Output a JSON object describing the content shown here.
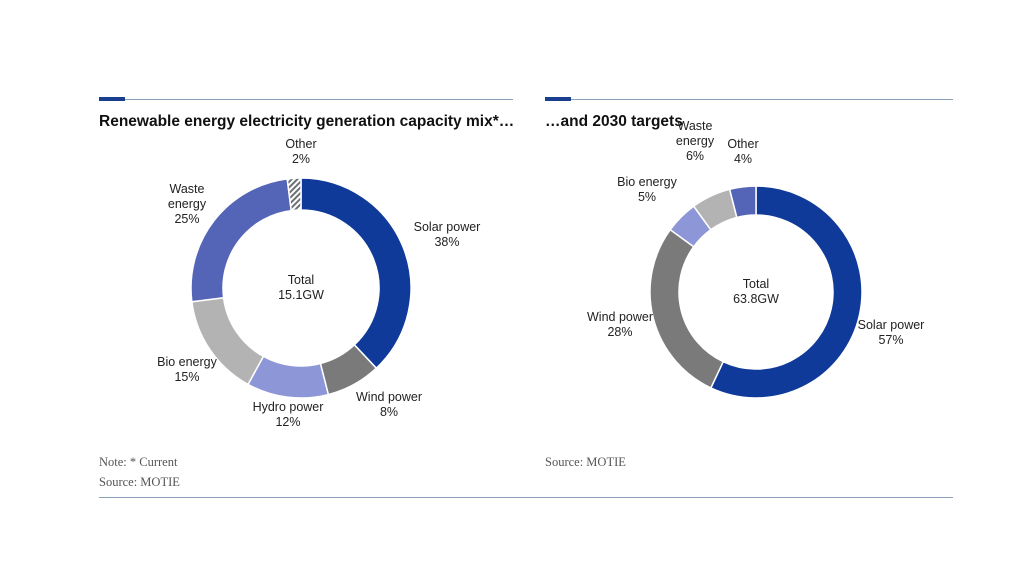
{
  "footer": {
    "left_note": "Note: * Current",
    "left_source": "Source: MOTIE",
    "right_source": "Source: MOTIE"
  },
  "colors": {
    "accent": "#1b3f8f",
    "rule": "#8aa1bc"
  },
  "chart_data": [
    {
      "type": "pie",
      "variant": "donut",
      "title": "Renewable energy electricity generation capacity mix*…",
      "center_label": [
        "Total",
        "15.1GW"
      ],
      "slices": [
        {
          "label": [
            "Solar power"
          ],
          "pct_text": "38%",
          "value": 38,
          "color": "#0f3a99"
        },
        {
          "label": [
            "Wind power"
          ],
          "pct_text": "8%",
          "value": 8,
          "color": "#7a7a7a"
        },
        {
          "label": [
            "Hydro power"
          ],
          "pct_text": "12%",
          "value": 12,
          "color": "#8d96d6"
        },
        {
          "label": [
            "Bio energy"
          ],
          "pct_text": "15%",
          "value": 15,
          "color": "#b3b3b3"
        },
        {
          "label": [
            "Waste",
            "energy"
          ],
          "pct_text": "25%",
          "value": 25,
          "color": "#5465b7"
        },
        {
          "label": [
            "Other"
          ],
          "pct_text": "2%",
          "value": 2,
          "color": "#9aa0a6",
          "pattern": "hatch"
        }
      ]
    },
    {
      "type": "pie",
      "variant": "donut",
      "title": "…and 2030 targets",
      "center_label": [
        "Total",
        "63.8GW"
      ],
      "slices": [
        {
          "label": [
            "Solar power"
          ],
          "pct_text": "57%",
          "value": 57,
          "color": "#0f3a99"
        },
        {
          "label": [
            "Wind power"
          ],
          "pct_text": "28%",
          "value": 28,
          "color": "#7a7a7a"
        },
        {
          "label": [
            "Bio energy"
          ],
          "pct_text": "5%",
          "value": 5,
          "color": "#8d96d6"
        },
        {
          "label": [
            "Waste",
            "energy"
          ],
          "pct_text": "6%",
          "value": 6,
          "color": "#b3b3b3"
        },
        {
          "label": [
            "Other"
          ],
          "pct_text": "4%",
          "value": 4,
          "color": "#5465b7"
        }
      ]
    }
  ]
}
